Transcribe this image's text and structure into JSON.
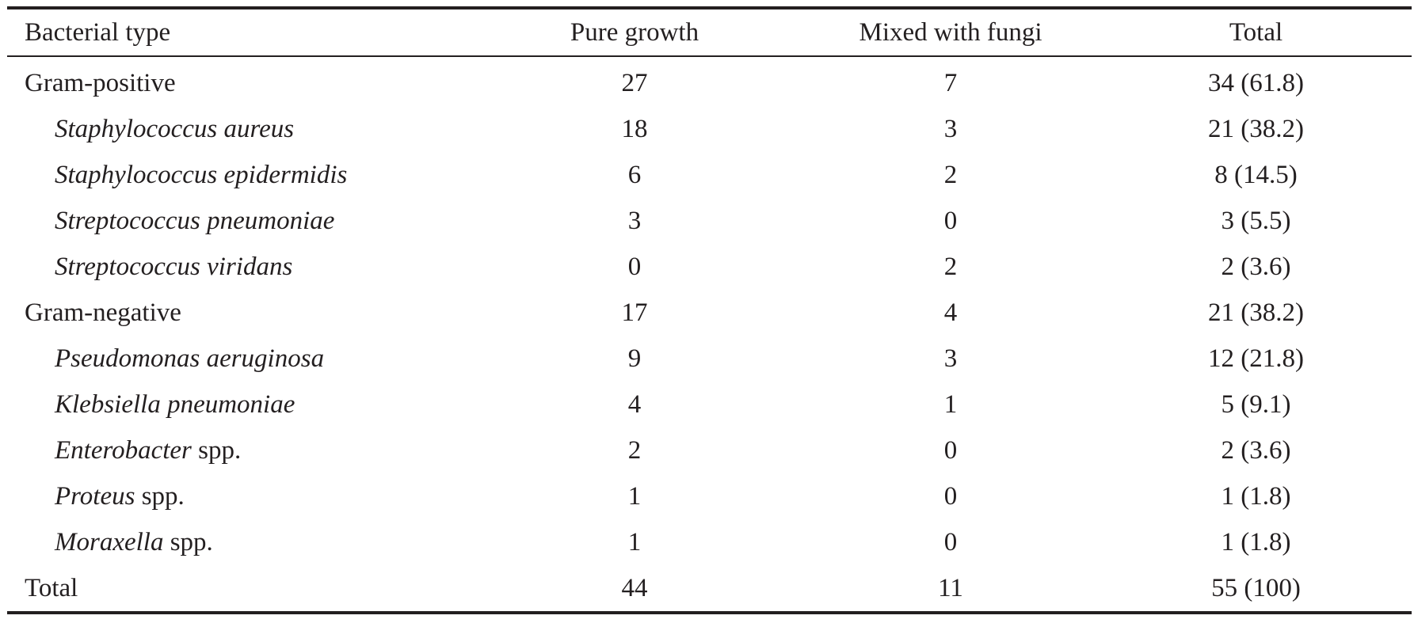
{
  "table": {
    "headers": {
      "type": "Bacterial type",
      "pure": "Pure growth",
      "mixed": "Mixed with fungi",
      "total": "Total"
    },
    "rows": [
      {
        "italic": "",
        "plain": "Gram-positive",
        "pure": "27",
        "mixed": "7",
        "total": "34 (61.8)"
      },
      {
        "italic": "Staphylococcus aureus",
        "plain": "",
        "pure": "18",
        "mixed": "3",
        "total": "21 (38.2)"
      },
      {
        "italic": "Staphylococcus epidermidis",
        "plain": "",
        "pure": "6",
        "mixed": "2",
        "total": "8 (14.5)"
      },
      {
        "italic": "Streptococcus pneumoniae",
        "plain": "",
        "pure": "3",
        "mixed": "0",
        "total": "3 (5.5)"
      },
      {
        "italic": "Streptococcus viridans",
        "plain": "",
        "pure": "0",
        "mixed": "2",
        "total": "2 (3.6)"
      },
      {
        "italic": "",
        "plain": "Gram-negative",
        "pure": "17",
        "mixed": "4",
        "total": "21 (38.2)"
      },
      {
        "italic": "Pseudomonas aeruginosa",
        "plain": "",
        "pure": "9",
        "mixed": "3",
        "total": "12 (21.8)"
      },
      {
        "italic": "Klebsiella pneumoniae",
        "plain": "",
        "pure": "4",
        "mixed": "1",
        "total": "5 (9.1)"
      },
      {
        "italic": "Enterobacter",
        "plain": " spp.",
        "pure": "2",
        "mixed": "0",
        "total": "2 (3.6)"
      },
      {
        "italic": "Proteus",
        "plain": " spp.",
        "pure": "1",
        "mixed": "0",
        "total": "1 (1.8)"
      },
      {
        "italic": "Moraxella",
        "plain": " spp.",
        "pure": "1",
        "mixed": "0",
        "total": "1 (1.8)"
      },
      {
        "italic": "",
        "plain": "Total",
        "pure": "44",
        "mixed": "11",
        "total": "55 (100)"
      }
    ]
  }
}
